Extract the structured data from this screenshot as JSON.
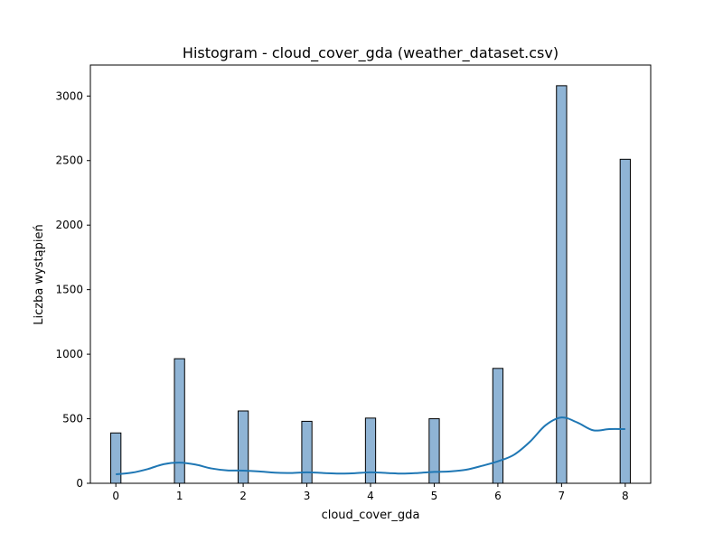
{
  "chart_data": {
    "type": "bar",
    "title": "Histogram - cloud_cover_gda (weather_dataset.csv)",
    "xlabel": "cloud_cover_gda",
    "ylabel": "Liczba wystąpień",
    "categories": [
      0,
      1,
      2,
      3,
      4,
      5,
      6,
      7,
      8
    ],
    "values": [
      390,
      965,
      560,
      480,
      505,
      500,
      890,
      3080,
      2510
    ],
    "xlim": [
      -0.4,
      8.4
    ],
    "ylim": [
      0,
      3240
    ],
    "x_ticks": [
      0,
      1,
      2,
      3,
      4,
      5,
      6,
      7,
      8
    ],
    "y_ticks": [
      0,
      500,
      1000,
      1500,
      2000,
      2500,
      3000
    ],
    "grid": false,
    "bar_color": "#8fb4d5",
    "bar_edge_color": "#000000",
    "kde": {
      "x": [
        0,
        0.25,
        0.5,
        0.75,
        1,
        1.25,
        1.5,
        1.75,
        2,
        2.25,
        2.5,
        2.75,
        3,
        3.25,
        3.5,
        3.75,
        4,
        4.25,
        4.5,
        4.75,
        5,
        5.25,
        5.5,
        5.75,
        6,
        6.25,
        6.5,
        6.75,
        7,
        7.25,
        7.5,
        7.75,
        8
      ],
      "y": [
        70,
        82,
        110,
        148,
        160,
        145,
        115,
        100,
        98,
        92,
        82,
        80,
        85,
        80,
        75,
        78,
        85,
        80,
        75,
        80,
        88,
        92,
        105,
        135,
        170,
        220,
        320,
        450,
        510,
        470,
        410,
        420,
        420
      ],
      "color": "#1f77b4"
    }
  }
}
